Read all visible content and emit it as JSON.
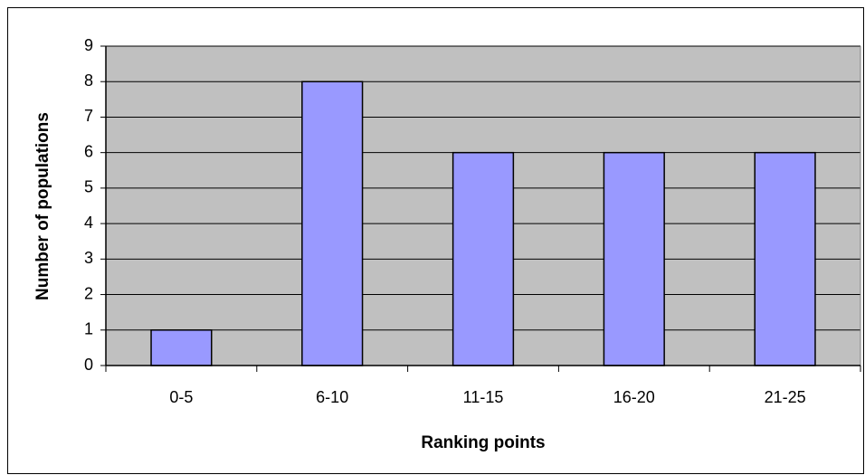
{
  "chart_data": {
    "type": "bar",
    "xlabel": "Ranking points",
    "ylabel": "Number of populations",
    "categories": [
      "0-5",
      "6-10",
      "11-15",
      "16-20",
      "21-25"
    ],
    "values": [
      1,
      8,
      6,
      6,
      6
    ],
    "color": "#9999ff",
    "ylim": [
      0,
      9
    ],
    "yticks": [
      0,
      1,
      2,
      3,
      4,
      5,
      6,
      7,
      8,
      9
    ],
    "grid": true
  }
}
